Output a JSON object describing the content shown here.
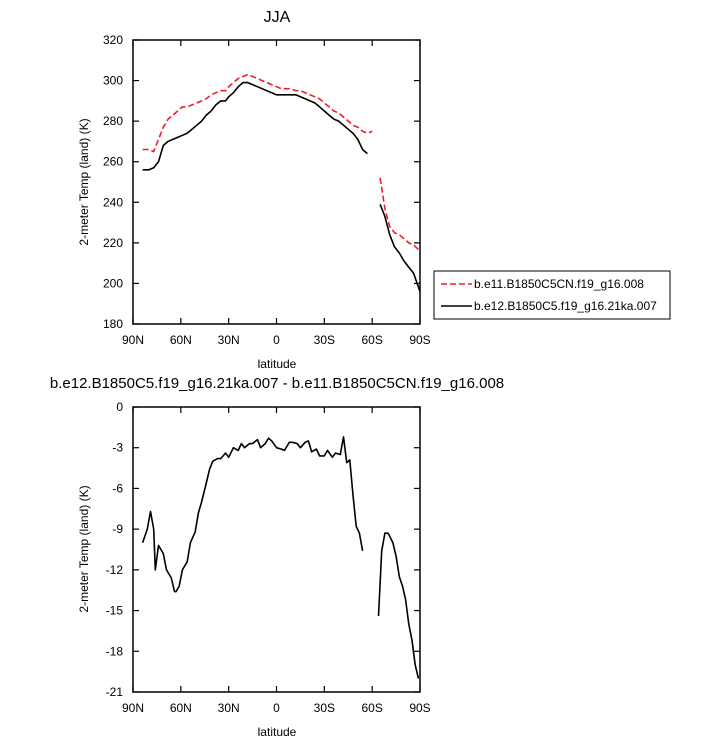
{
  "chart_data": [
    {
      "type": "line",
      "title": "JJA",
      "xlabel": "latitude",
      "ylabel": "2-meter Temp (land) (K)",
      "xlim": [
        90,
        -90
      ],
      "ylim": [
        180,
        320
      ],
      "yticks": [
        180,
        200,
        220,
        240,
        260,
        280,
        300,
        320
      ],
      "xticks": [
        90,
        60,
        30,
        0,
        -30,
        -60,
        -90
      ],
      "xticklabels": [
        "90N",
        "60N",
        "30N",
        "0",
        "30S",
        "60S",
        "90S"
      ],
      "grid": false,
      "legend_position": "right",
      "series": [
        {
          "name": "b.e11.B1850C5CN.f19_g16.008",
          "color": "#e8202a",
          "dash": "dashed",
          "segments": [
            [
              [
                84,
                266
              ],
              [
                80,
                266
              ],
              [
                77,
                265
              ],
              [
                74,
                271
              ],
              [
                71,
                277
              ],
              [
                68,
                281
              ],
              [
                65,
                283
              ],
              [
                62,
                285
              ],
              [
                59,
                287
              ],
              [
                56,
                287
              ],
              [
                53,
                288
              ],
              [
                50,
                289
              ],
              [
                47,
                290
              ],
              [
                44,
                291
              ],
              [
                41,
                293
              ],
              [
                38,
                294
              ],
              [
                35,
                295
              ],
              [
                32,
                295
              ],
              [
                30,
                297
              ],
              [
                27,
                299
              ],
              [
                24,
                301
              ],
              [
                21,
                302
              ],
              [
                18,
                303
              ],
              [
                15,
                302
              ],
              [
                12,
                301
              ],
              [
                9,
                300
              ],
              [
                6,
                299
              ],
              [
                3,
                298
              ],
              [
                0,
                297
              ],
              [
                -3,
                296
              ],
              [
                -6,
                296
              ],
              [
                -9,
                296
              ],
              [
                -12,
                295
              ],
              [
                -15,
                295
              ],
              [
                -18,
                294
              ],
              [
                -21,
                293
              ],
              [
                -24,
                292
              ],
              [
                -27,
                291
              ],
              [
                -30,
                289
              ],
              [
                -33,
                287
              ],
              [
                -36,
                285
              ],
              [
                -39,
                284
              ],
              [
                -42,
                282
              ],
              [
                -45,
                280
              ],
              [
                -48,
                278
              ],
              [
                -51,
                277
              ],
              [
                -54,
                275
              ],
              [
                -57,
                274
              ],
              [
                -60,
                275
              ]
            ],
            [
              [
                -65,
                252
              ],
              [
                -68,
                237
              ],
              [
                -71,
                228
              ],
              [
                -74,
                225
              ],
              [
                -77,
                224
              ],
              [
                -80,
                222
              ],
              [
                -83,
                220
              ],
              [
                -86,
                219
              ],
              [
                -90,
                216
              ]
            ]
          ]
        },
        {
          "name": "b.e12.B1850C5.f19_g16.21ka.007",
          "color": "#000000",
          "dash": "solid",
          "segments": [
            [
              [
                84,
                256
              ],
              [
                80,
                256
              ],
              [
                77,
                257
              ],
              [
                74,
                260
              ],
              [
                71,
                268
              ],
              [
                68,
                270
              ],
              [
                65,
                271
              ],
              [
                62,
                272
              ],
              [
                59,
                273
              ],
              [
                56,
                274
              ],
              [
                53,
                276
              ],
              [
                50,
                278
              ],
              [
                47,
                280
              ],
              [
                44,
                283
              ],
              [
                41,
                285
              ],
              [
                38,
                288
              ],
              [
                35,
                290
              ],
              [
                32,
                290
              ],
              [
                30,
                292
              ],
              [
                27,
                294
              ],
              [
                24,
                297
              ],
              [
                21,
                299
              ],
              [
                18,
                299
              ],
              [
                15,
                298
              ],
              [
                12,
                297
              ],
              [
                9,
                296
              ],
              [
                6,
                295
              ],
              [
                3,
                294
              ],
              [
                0,
                293
              ],
              [
                -3,
                293
              ],
              [
                -6,
                293
              ],
              [
                -9,
                293
              ],
              [
                -12,
                293
              ],
              [
                -15,
                292
              ],
              [
                -18,
                291
              ],
              [
                -21,
                290
              ],
              [
                -24,
                289
              ],
              [
                -27,
                287
              ],
              [
                -30,
                285
              ],
              [
                -33,
                283
              ],
              [
                -36,
                281
              ],
              [
                -39,
                280
              ],
              [
                -42,
                278
              ],
              [
                -45,
                276
              ],
              [
                -48,
                274
              ],
              [
                -51,
                271
              ],
              [
                -54,
                266
              ],
              [
                -57,
                264
              ]
            ],
            [
              [
                -65,
                239
              ],
              [
                -68,
                233
              ],
              [
                -71,
                224
              ],
              [
                -74,
                218
              ],
              [
                -77,
                215
              ],
              [
                -80,
                211
              ],
              [
                -83,
                208
              ],
              [
                -86,
                205
              ],
              [
                -90,
                196
              ]
            ]
          ]
        }
      ]
    },
    {
      "type": "line",
      "title": "b.e12.B1850C5.f19_g16.21ka.007 - b.e11.B1850C5CN.f19_g16.008",
      "xlabel": "latitude",
      "ylabel": "2-meter Temp (land) (K)",
      "xlim": [
        90,
        -90
      ],
      "ylim": [
        -21,
        0
      ],
      "yticks": [
        -21,
        -18,
        -15,
        -12,
        -9,
        -6,
        -3,
        0
      ],
      "xticks": [
        90,
        60,
        30,
        0,
        -30,
        -60,
        -90
      ],
      "xticklabels": [
        "90N",
        "60N",
        "30N",
        "0",
        "30S",
        "60S",
        "90S"
      ],
      "grid": false,
      "series": [
        {
          "color": "#000000",
          "dash": "solid",
          "segments": [
            [
              [
                84,
                -10
              ],
              [
                81,
                -9
              ],
              [
                79,
                -7.7
              ],
              [
                77,
                -9
              ],
              [
                76,
                -12
              ],
              [
                74,
                -10.2
              ],
              [
                71,
                -10.8
              ],
              [
                69,
                -12
              ],
              [
                66,
                -12.6
              ],
              [
                64,
                -13.6
              ],
              [
                63,
                -13.6
              ],
              [
                61,
                -13.2
              ],
              [
                59,
                -12
              ],
              [
                56,
                -11.4
              ],
              [
                54,
                -10
              ],
              [
                51,
                -9.2
              ],
              [
                49,
                -7.8
              ],
              [
                47,
                -7
              ],
              [
                44,
                -5.6
              ],
              [
                42,
                -4.6
              ],
              [
                40,
                -4
              ],
              [
                37,
                -3.8
              ],
              [
                35,
                -3.8
              ],
              [
                32,
                -3.4
              ],
              [
                30,
                -3.7
              ],
              [
                27,
                -3
              ],
              [
                24,
                -3.2
              ],
              [
                22,
                -2.7
              ],
              [
                20,
                -3
              ],
              [
                17,
                -2.7
              ],
              [
                15,
                -2.7
              ],
              [
                12,
                -2.4
              ],
              [
                10,
                -3
              ],
              [
                7,
                -2.7
              ],
              [
                5,
                -2.3
              ],
              [
                3,
                -2.5
              ],
              [
                0,
                -3
              ],
              [
                -3,
                -3.1
              ],
              [
                -5,
                -3.2
              ],
              [
                -8,
                -2.6
              ],
              [
                -10,
                -2.6
              ],
              [
                -13,
                -2.7
              ],
              [
                -15,
                -3
              ],
              [
                -18,
                -2.6
              ],
              [
                -20,
                -2.5
              ],
              [
                -22,
                -3.3
              ],
              [
                -25,
                -3.1
              ],
              [
                -27,
                -3.6
              ],
              [
                -30,
                -3.6
              ],
              [
                -32,
                -3.2
              ],
              [
                -35,
                -3.7
              ],
              [
                -37,
                -3.4
              ],
              [
                -40,
                -3.5
              ],
              [
                -42,
                -2.2
              ],
              [
                -44,
                -4.1
              ],
              [
                -46,
                -3.9
              ],
              [
                -48,
                -6.5
              ],
              [
                -50,
                -8.8
              ],
              [
                -52,
                -9.3
              ],
              [
                -54,
                -10.6
              ]
            ],
            [
              [
                -64,
                -15.4
              ],
              [
                -66,
                -10.6
              ],
              [
                -68,
                -9.3
              ],
              [
                -70,
                -9.3
              ],
              [
                -73,
                -10
              ],
              [
                -75,
                -11
              ],
              [
                -77,
                -12.5
              ],
              [
                -79,
                -13.2
              ],
              [
                -81,
                -14.2
              ],
              [
                -83,
                -16
              ],
              [
                -85,
                -17.2
              ],
              [
                -87,
                -19
              ],
              [
                -89,
                -20
              ]
            ]
          ]
        }
      ]
    }
  ]
}
